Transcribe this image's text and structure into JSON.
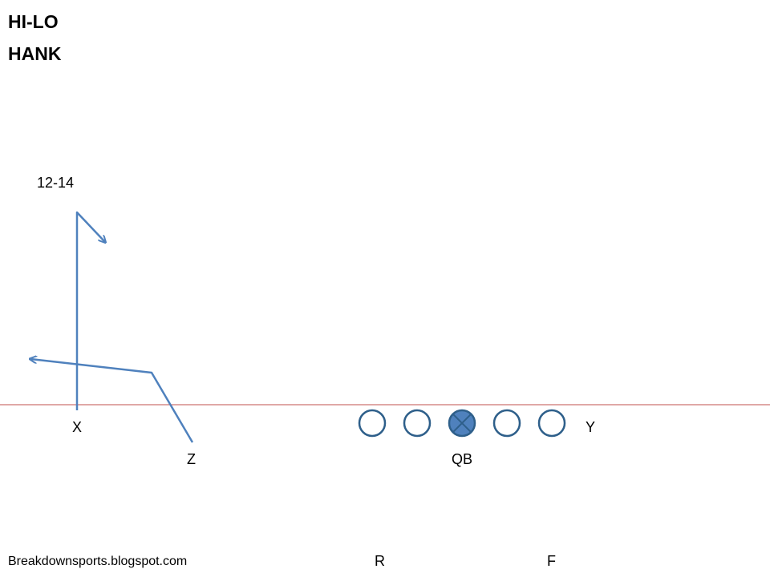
{
  "title_lines": [
    "HI-LO",
    "HANK"
  ],
  "route_depth_label": "12-14",
  "players": {
    "x": "X",
    "z": "Z",
    "qb": "QB",
    "y": "Y",
    "r": "R",
    "f": "F"
  },
  "footer_credit": "Breakdownsports.blogspot.com",
  "colors": {
    "route": "#4f81bd",
    "line_of_scrimmage": "#c0504d",
    "lineman_stroke": "#2e5f8a",
    "center_fill": "#4f81bd",
    "text": "#000000"
  },
  "icons": {
    "lineman": "open-circle",
    "center": "filled-circle-with-x"
  }
}
